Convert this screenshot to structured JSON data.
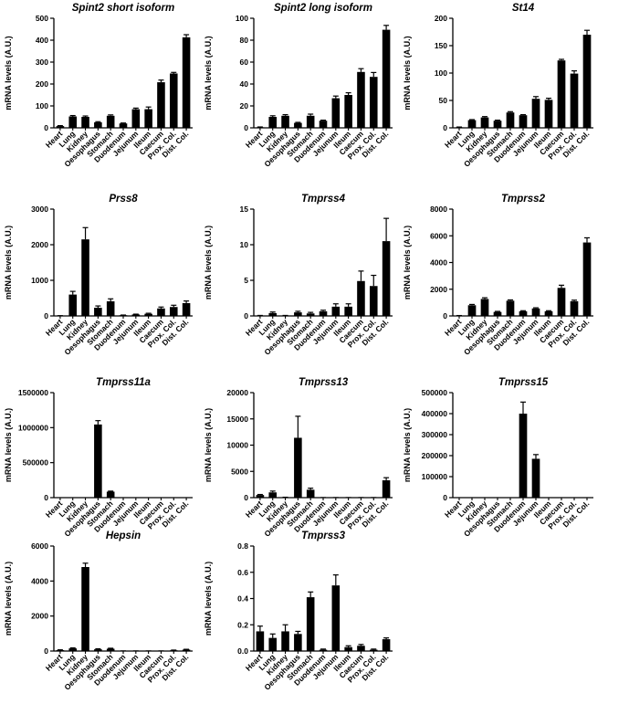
{
  "chart_data": [
    {
      "type": "bar",
      "title": "Spint2 short isoform",
      "ylabel": "mRNA levels (A.U.)",
      "ylim": [
        0,
        500
      ],
      "yticks": [
        "0",
        "100",
        "200",
        "300",
        "400",
        "500"
      ],
      "categories": [
        "Heart",
        "Lung",
        "Kidney",
        "Oesophagus",
        "Stomach",
        "Duodenum",
        "Jejunum",
        "Ileum",
        "Caecum",
        "Prox. Col.",
        "Dist. Col."
      ],
      "values": [
        8,
        52,
        50,
        25,
        55,
        20,
        85,
        85,
        208,
        248,
        413
      ],
      "errors": [
        2,
        4,
        4,
        3,
        4,
        2,
        5,
        10,
        10,
        5,
        12
      ]
    },
    {
      "type": "bar",
      "title": "Spint2 long isoform",
      "ylabel": "mRNA levels (A.U.)",
      "ylim": [
        0,
        100
      ],
      "yticks": [
        "0",
        "20",
        "40",
        "60",
        "80",
        "100"
      ],
      "categories": [
        "Heart",
        "Lung",
        "Kidney",
        "Oesophagus",
        "Stomach",
        "Duodenum",
        "Jejunum",
        "Ileum",
        "Caecum",
        "Prox. Col.",
        "Dist. Col."
      ],
      "values": [
        0.5,
        10,
        11,
        4.5,
        11,
        6.5,
        27,
        30,
        51,
        46.5,
        89.5
      ],
      "errors": [
        0.3,
        1,
        1,
        0.5,
        1.5,
        0.5,
        2,
        2,
        3,
        4,
        4
      ]
    },
    {
      "type": "bar",
      "title": "St14",
      "ylabel": "mRNA levels (A.U.)",
      "ylim": [
        0,
        200
      ],
      "yticks": [
        "0",
        "50",
        "100",
        "150",
        "200"
      ],
      "categories": [
        "Heart",
        "Lung",
        "Kidney",
        "Oesophagus",
        "Stomach",
        "Duodenum",
        "Jejunum",
        "Ileum",
        "Caecum",
        "Prox. Col.",
        "Dist. Col."
      ],
      "values": [
        1,
        14,
        19,
        13,
        28,
        23,
        53,
        51,
        123,
        99,
        170
      ],
      "errors": [
        0.5,
        1,
        1.5,
        1,
        1.5,
        1,
        4,
        3,
        2,
        5,
        8
      ]
    },
    {
      "type": "bar",
      "title": "Prss8",
      "ylabel": "mRNA levels (A.U.)",
      "ylim": [
        0,
        3000
      ],
      "yticks": [
        "0",
        "1000",
        "2000",
        "3000"
      ],
      "categories": [
        "Heart",
        "Lung",
        "Kidney",
        "Oesophagus",
        "Stomach",
        "Duodenum",
        "Jejunum",
        "Ileum",
        "Caecum",
        "Prox. Col.",
        "Dist. Col."
      ],
      "values": [
        5,
        600,
        2150,
        230,
        410,
        20,
        40,
        60,
        210,
        250,
        360
      ],
      "errors": [
        3,
        90,
        330,
        50,
        70,
        5,
        10,
        15,
        40,
        50,
        60
      ]
    },
    {
      "type": "bar",
      "title": "Tmprss4",
      "ylabel": "mRNA levels (A.U.)",
      "ylim": [
        0,
        15
      ],
      "yticks": [
        "0",
        "5",
        "10",
        "15"
      ],
      "categories": [
        "Heart",
        "Lung",
        "Kidney",
        "Oesophagus",
        "Stomach",
        "Duodenum",
        "Jejunum",
        "Ileum",
        "Caecum",
        "Prox. Col.",
        "Dist. Col."
      ],
      "values": [
        0.05,
        0.4,
        0.05,
        0.5,
        0.35,
        0.65,
        1.3,
        1.3,
        4.9,
        4.2,
        10.5
      ],
      "errors": [
        0.02,
        0.15,
        0.02,
        0.15,
        0.15,
        0.15,
        0.4,
        0.4,
        1.4,
        1.5,
        3.2
      ]
    },
    {
      "type": "bar",
      "title": "Tmprss2",
      "ylabel": "mRNA levels (A.U.)",
      "ylim": [
        0,
        8000
      ],
      "yticks": [
        "0",
        "2000",
        "4000",
        "6000",
        "8000"
      ],
      "categories": [
        "Heart",
        "Lung",
        "Kidney",
        "Oesophagus",
        "Stomach",
        "Duodenum",
        "Jejunum",
        "Ileum",
        "Caecum",
        "Prox. Col.",
        "Dist. Col."
      ],
      "values": [
        20,
        800,
        1270,
        300,
        1140,
        350,
        560,
        350,
        2100,
        1100,
        5500
      ],
      "errors": [
        10,
        60,
        90,
        40,
        60,
        40,
        50,
        40,
        200,
        80,
        350
      ]
    },
    {
      "type": "bar",
      "title": "Tmprss11a",
      "ylabel": "mRNA levels (A.U.)",
      "ylim": [
        0,
        1500000
      ],
      "yticks": [
        "0",
        "500000",
        "1000000",
        "1500000"
      ],
      "categories": [
        "Heart",
        "Lung",
        "Kidney",
        "Oesophagus",
        "Stomach",
        "Duodenum",
        "Jejunum",
        "Ileum",
        "Caecum",
        "Prox. Col.",
        "Dist. Col."
      ],
      "values": [
        0,
        0,
        0,
        1045000,
        85000,
        0,
        0,
        0,
        0,
        0,
        0
      ],
      "errors": [
        0,
        0,
        0,
        55000,
        8000,
        0,
        0,
        0,
        0,
        0,
        0
      ]
    },
    {
      "type": "bar",
      "title": "Tmprss13",
      "ylabel": "mRNA levels (A.U.)",
      "ylim": [
        0,
        20000
      ],
      "yticks": [
        "0",
        "5000",
        "10000",
        "15000",
        "20000"
      ],
      "categories": [
        "Heart",
        "Lung",
        "Kidney",
        "Oesophagus",
        "Stomach",
        "Duodenum",
        "Jejunum",
        "Ileum",
        "Caecum",
        "Prox. Col.",
        "Dist. Col."
      ],
      "values": [
        500,
        1000,
        60,
        11400,
        1500,
        10,
        10,
        10,
        10,
        10,
        3300
      ],
      "errors": [
        100,
        250,
        20,
        4100,
        300,
        5,
        5,
        5,
        5,
        5,
        500
      ]
    },
    {
      "type": "bar",
      "title": "Tmprss15",
      "ylabel": "mRNA levels (A.U.)",
      "ylim": [
        0,
        500000
      ],
      "yticks": [
        "0",
        "100000",
        "200000",
        "300000",
        "400000",
        "500000"
      ],
      "categories": [
        "Heart",
        "Lung",
        "Kidney",
        "Oesophagus",
        "Stomach",
        "Duodenum",
        "Jejunum",
        "Ileum",
        "Caecum",
        "Prox. Col.",
        "Dist. Col."
      ],
      "values": [
        0,
        0,
        0,
        0,
        0,
        400000,
        185000,
        0,
        0,
        0,
        0
      ],
      "errors": [
        0,
        0,
        0,
        0,
        0,
        55000,
        20000,
        0,
        0,
        0,
        0
      ]
    },
    {
      "type": "bar",
      "title": "Hepsin",
      "ylabel": "mRNA levels (A.U.)",
      "ylim": [
        0,
        6000
      ],
      "yticks": [
        "0",
        "2000",
        "4000",
        "6000"
      ],
      "categories": [
        "Heart",
        "Lung",
        "Kidney",
        "Oesophagus",
        "Stomach",
        "Duodenum",
        "Jejunum",
        "Ileum",
        "Caecum",
        "Prox. Col.",
        "Dist. Col."
      ],
      "values": [
        50,
        150,
        4800,
        100,
        130,
        5,
        5,
        5,
        5,
        40,
        80
      ],
      "errors": [
        20,
        30,
        220,
        30,
        30,
        2,
        2,
        2,
        2,
        15,
        20
      ]
    },
    {
      "type": "bar",
      "title": "Tmprss3",
      "ylabel": "mRNA levels (A.U.)",
      "ylim": [
        0,
        0.8
      ],
      "yticks": [
        "0.0",
        "0.2",
        "0.4",
        "0.6",
        "0.8"
      ],
      "categories": [
        "Heart",
        "Lung",
        "Kidney",
        "Oesophagus",
        "Stomach",
        "Duodenum",
        "Jejunum",
        "Ileum",
        "Caecum",
        "Prox. Col.",
        "Dist. Col."
      ],
      "values": [
        0.15,
        0.1,
        0.15,
        0.13,
        0.41,
        0.01,
        0.5,
        0.03,
        0.04,
        0.01,
        0.09
      ],
      "errors": [
        0.04,
        0.03,
        0.05,
        0.02,
        0.04,
        0.005,
        0.08,
        0.01,
        0.01,
        0.005,
        0.01
      ]
    }
  ]
}
